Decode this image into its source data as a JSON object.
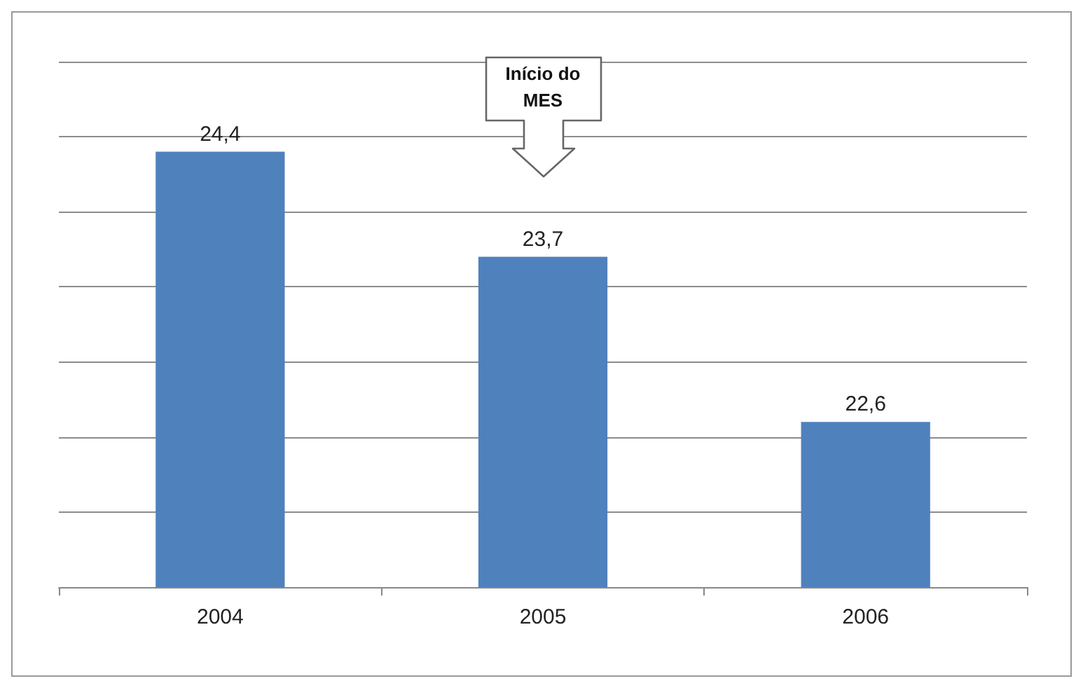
{
  "chart_data": {
    "type": "bar",
    "categories": [
      "2004",
      "2005",
      "2006"
    ],
    "values": [
      24.4,
      23.7,
      22.6
    ],
    "value_labels": [
      "24,4",
      "23,7",
      "22,6"
    ],
    "color": "#4f81bd",
    "ylim": [
      21.5,
      25
    ],
    "yticks": [
      {
        "value": 21.5,
        "label": null
      },
      {
        "value": 22,
        "label": null
      },
      {
        "value": 22.5,
        "label": null
      },
      {
        "value": 23,
        "label": null
      },
      {
        "value": 23.5,
        "label": null
      },
      {
        "value": 24,
        "label": null
      },
      {
        "value": 24.5,
        "label": null
      },
      {
        "value": 25,
        "label": null
      }
    ],
    "tick_labels": "x",
    "grid": "y",
    "annotations": [
      "Início do MES"
    ]
  }
}
